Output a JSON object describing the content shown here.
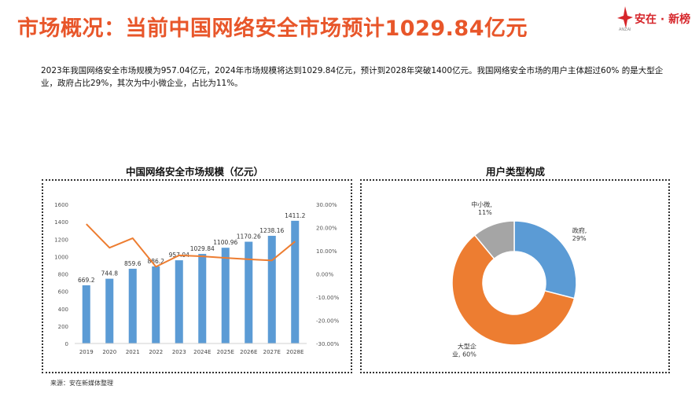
{
  "header": {
    "title": "市场概况：当前中国网络安全市场预计1029.84亿元",
    "brand_text": "安在 · 新榜",
    "brand_sub": "ANZAI",
    "brand_color": "#d6262b"
  },
  "intro": "2023年我国网络安全市场规模为957.04亿元，2024年市场规模将达到1029.84亿元，预计到2028年突破1400亿元。我国网络安全市场的用户主体超过60% 的是大型企业，政府占比29%，其次为中小微企业，占比为11%。",
  "source": "来源：安在新媒体整理",
  "colors": {
    "accent": "#e8562a",
    "bar": "#5b9bd5",
    "line": "#ed7d31",
    "gray": "#a5a5a5"
  },
  "chart_data": [
    {
      "type": "bar",
      "title": "中国网络安全市场规模（亿元）",
      "categories": [
        "2019",
        "2020",
        "2021",
        "2022",
        "2023",
        "2024E",
        "2025E",
        "2026E",
        "2027E",
        "2028E"
      ],
      "series": [
        {
          "values": [
            669.2,
            744.8,
            859.6,
            886.2,
            957.04,
            1029.84,
            1100.96,
            1170.26,
            1238.16,
            1411.2
          ],
          "labels": [
            "669.2",
            "744.8",
            "859.6",
            "886.2",
            "957.04",
            "1029.84",
            "1100.96",
            "1170.26",
            "1238.16",
            "1411.2"
          ]
        },
        {
          "type": "line",
          "axis": "right",
          "values": [
            21.5,
            11.3,
            15.4,
            3.1,
            8.0,
            7.6,
            6.9,
            6.3,
            5.8,
            14.0
          ]
        }
      ],
      "ylim": [
        0,
        1600
      ],
      "yticks": [
        "0",
        "200",
        "400",
        "600",
        "800",
        "1000",
        "1200",
        "1400",
        "1600"
      ],
      "y2lim": [
        -30,
        30
      ],
      "y2ticks": [
        "-30.00%",
        "-20.00%",
        "-10.00%",
        "0.00%",
        "10.00%",
        "20.00%",
        "30.00%"
      ],
      "grid": false
    },
    {
      "type": "pie",
      "title": "用户类型构成",
      "donut": true,
      "slices": [
        {
          "name": "政府",
          "value": 29,
          "label_line1": "政府,",
          "label_line2": "29%",
          "color": "#5b9bd5"
        },
        {
          "name": "大型企业",
          "value": 60,
          "label_line1": "大型企",
          "label_line2": "业, 60%",
          "color": "#ed7d31"
        },
        {
          "name": "中小微",
          "value": 11,
          "label_line1": "中小微,",
          "label_line2": "11%",
          "color": "#a5a5a5"
        }
      ]
    }
  ]
}
